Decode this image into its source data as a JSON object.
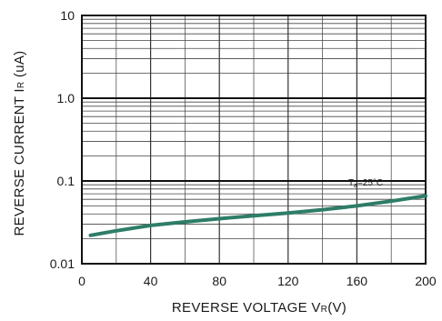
{
  "chart_data": {
    "type": "line",
    "xlabel": {
      "main": "REVERSE VOLTAGE V",
      "sub": "R",
      "unit": "(V)"
    },
    "ylabel": {
      "main": "REVERSE CURRENT I",
      "sub": "R",
      "unit": " (uA)"
    },
    "xlim": [
      0,
      200
    ],
    "ylim": [
      0.01,
      10
    ],
    "yscale": "log",
    "grid": true,
    "x_ticks": [
      {
        "value": 0,
        "label": "0"
      },
      {
        "value": 40,
        "label": "40"
      },
      {
        "value": 80,
        "label": "80"
      },
      {
        "value": 120,
        "label": "120"
      },
      {
        "value": 160,
        "label": "160"
      },
      {
        "value": 200,
        "label": "200"
      }
    ],
    "y_ticks": [
      {
        "value": 0.01,
        "label": "0.01"
      },
      {
        "value": 0.1,
        "label": "0.1"
      },
      {
        "value": 1.0,
        "label": "1.0"
      },
      {
        "value": 10,
        "label": "10"
      }
    ],
    "annotation": {
      "main": "T",
      "sub": "a",
      "rest": "=25°C",
      "x": 155,
      "y": 0.088
    },
    "series": [
      {
        "color": "#2e7d68",
        "x": [
          5,
          20,
          40,
          60,
          80,
          100,
          120,
          140,
          160,
          180,
          200
        ],
        "y": [
          0.022,
          0.025,
          0.029,
          0.032,
          0.035,
          0.038,
          0.041,
          0.045,
          0.05,
          0.057,
          0.066
        ]
      }
    ]
  }
}
